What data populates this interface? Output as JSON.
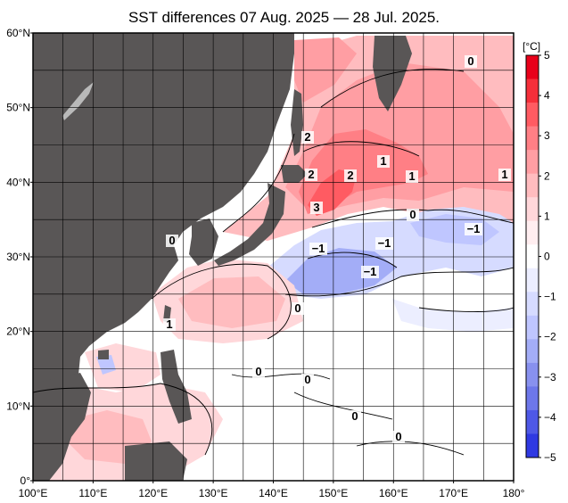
{
  "title": "SST differences 07 Aug. 2025 — 28 Jul. 2025.",
  "colorbar": {
    "unit": "[°C]",
    "ticks": [
      "5",
      "4",
      "3",
      "2",
      "1",
      "0",
      "−1",
      "−2",
      "−3",
      "−4",
      "−5"
    ],
    "colors": [
      "#e8001a",
      "#f52f3a",
      "#ff5b62",
      "#ff7f85",
      "#ff9ea3",
      "#ffbcbf",
      "#ffd7da",
      "#ffeef0",
      "#ffffff",
      "#eceeff",
      "#d6dbff",
      "#bfc6ff",
      "#a3adf7",
      "#8891ef",
      "#6d77ea",
      "#4e58e6",
      "#2f39e2"
    ]
  },
  "lat_labels": [
    "60°N",
    "50°N",
    "40°N",
    "30°N",
    "20°N",
    "10°N",
    "0°"
  ],
  "lon_labels": [
    "100°E",
    "110°E",
    "120°E",
    "130°E",
    "140°E",
    "150°E",
    "160°E",
    "170°E",
    "180°"
  ],
  "contour_labels": [
    "0",
    "2",
    "1",
    "2",
    "2",
    "1",
    "1",
    "3",
    "0",
    "0",
    "−1",
    "−1",
    "−1",
    "−1",
    "0",
    "1",
    "0",
    "0",
    "0",
    "0"
  ],
  "colors": {
    "land": "#595656",
    "frame": "#000000"
  }
}
